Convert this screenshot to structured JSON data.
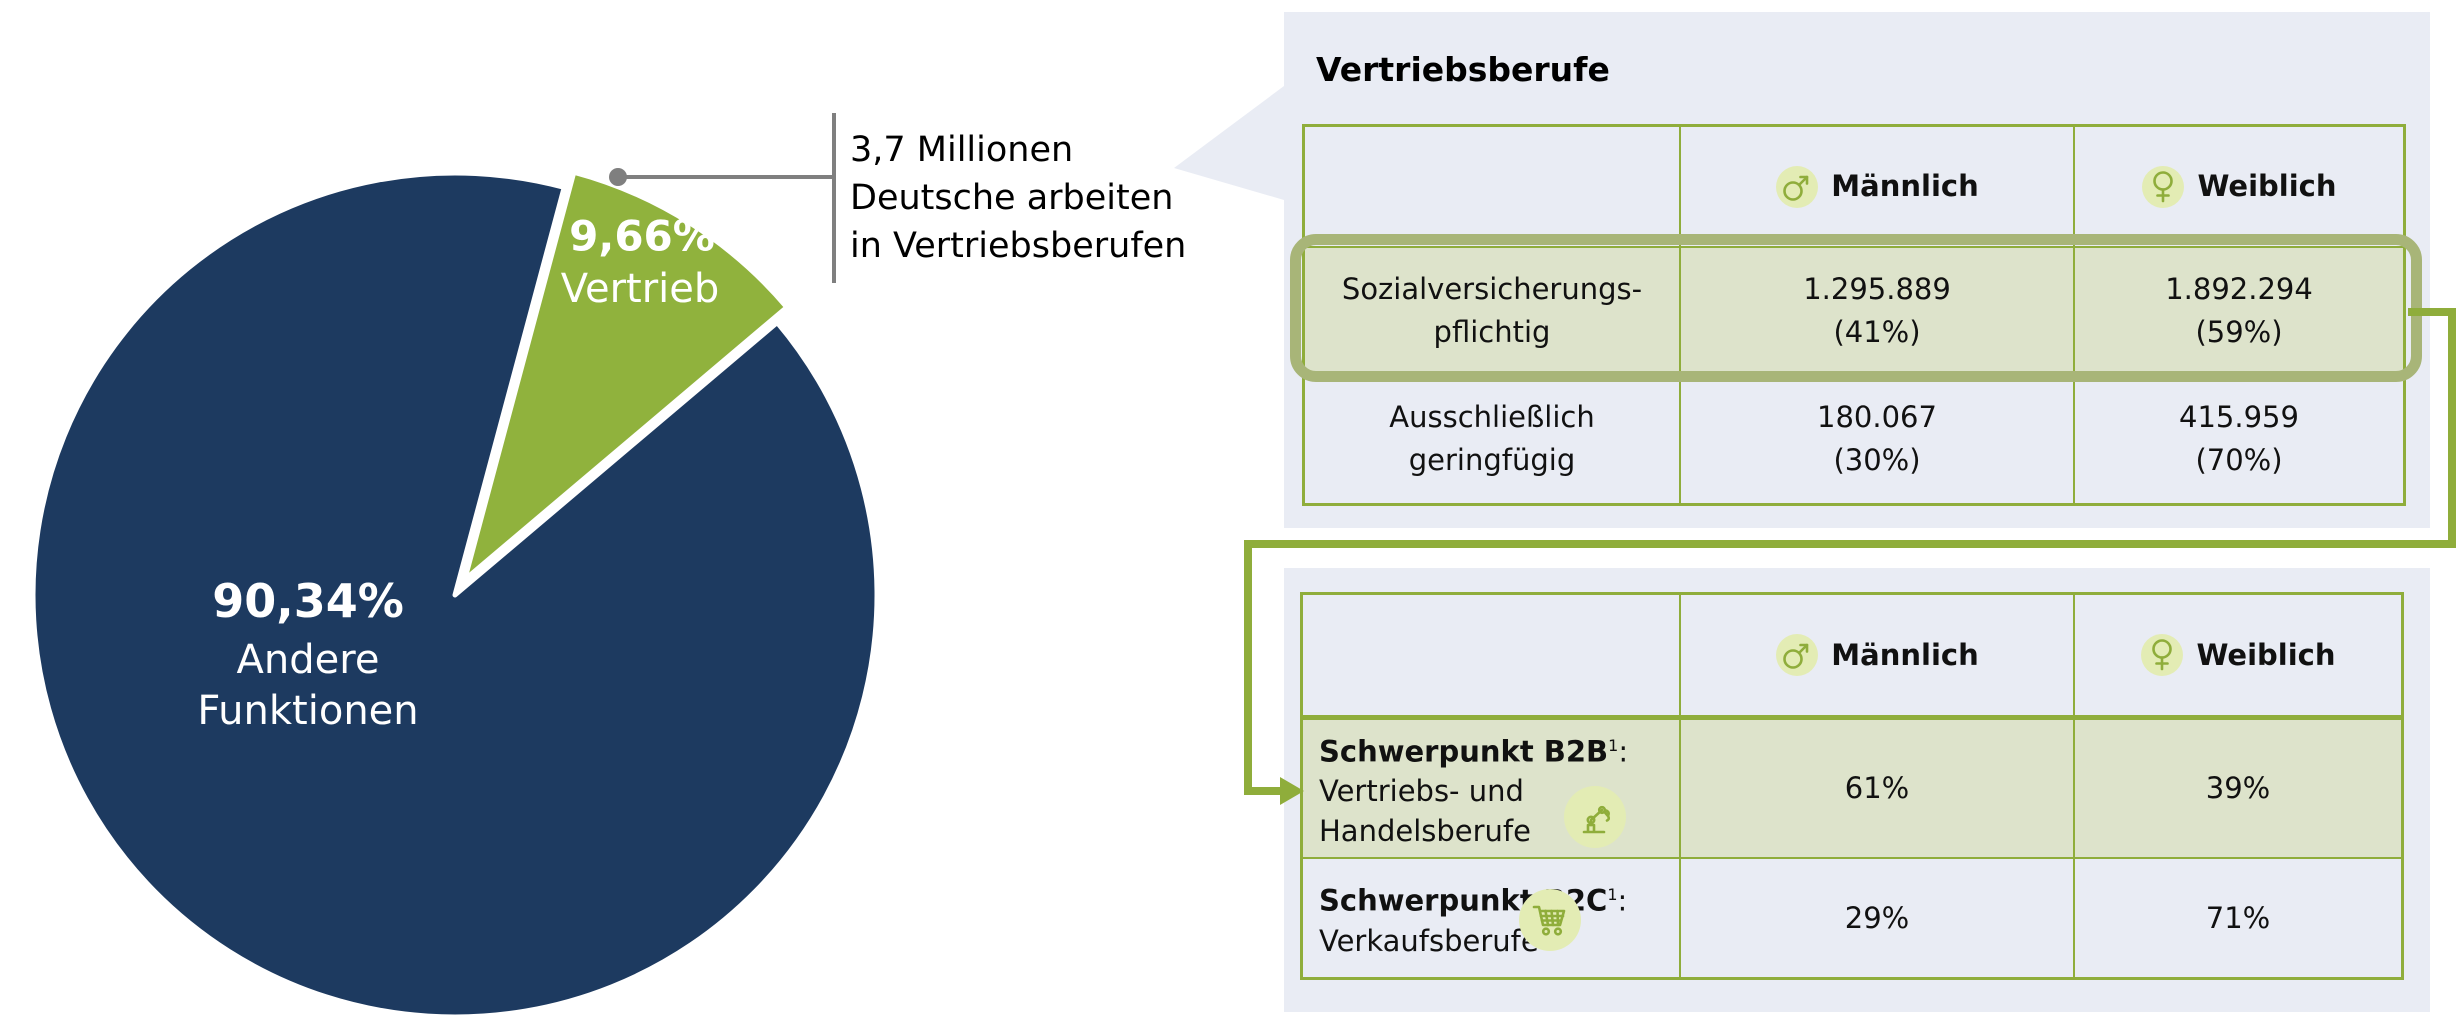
{
  "chart_data": [
    {
      "type": "pie",
      "labels": [
        "Vertrieb",
        "Andere Funktionen"
      ],
      "values": [
        9.66,
        90.34
      ],
      "display_values": [
        "9,66%",
        "90,34%"
      ],
      "colors": [
        "#90b23d",
        "#1d3a60"
      ],
      "annotation": "3,7 Millionen Deutsche arbeiten in Vertriebsberufen",
      "legend": "none",
      "label_position": "inside",
      "exploded_slice": "Vertrieb"
    },
    {
      "type": "table",
      "title": "Vertriebsberufe",
      "columns": [
        "",
        "Männlich",
        "Weiblich"
      ],
      "rows": [
        [
          "Sozialversicherungs-pflichtig",
          "1.295.889 (41%)",
          "1.892.294 (59%)"
        ],
        [
          "Ausschließlich geringfügig",
          "180.067 (30%)",
          "415.959 (70%)"
        ]
      ],
      "highlighted_row": 0
    },
    {
      "type": "table",
      "columns": [
        "",
        "Männlich",
        "Weiblich"
      ],
      "rows": [
        [
          "Schwerpunkt B2B¹: Vertriebs- und Handelsberufe",
          "61%",
          "39%"
        ],
        [
          "Schwerpunkt B2C¹: Verkaufsberufe",
          "29%",
          "71%"
        ]
      ],
      "highlighted_row": 0
    }
  ],
  "pie": {
    "slice_small_pct": "9,66%",
    "slice_small_label": "Vertrieb",
    "slice_large_pct": "90,34%",
    "slice_large_label_1": "Andere",
    "slice_large_label_2": "Funktionen"
  },
  "callout": {
    "line1": "3,7 Millionen",
    "line2": "Deutsche arbeiten",
    "line3": "in Vertriebsberufen"
  },
  "panel1": {
    "title": "Vertriebsberufe",
    "col_male": "Männlich",
    "col_female": "Weiblich",
    "row1": {
      "label1": "Sozialversicherungs-",
      "label2": "pflichtig",
      "male1": "1.295.889",
      "male2": "(41%)",
      "female1": "1.892.294",
      "female2": "(59%)"
    },
    "row2": {
      "label1": "Ausschließlich",
      "label2": "geringfügig",
      "male1": "180.067",
      "male2": "(30%)",
      "female1": "415.959",
      "female2": "(70%)"
    }
  },
  "panel2": {
    "col_male": "Männlich",
    "col_female": "Weiblich",
    "row1": {
      "label_bold": "Schwerpunkt B2B",
      "footnote": "1",
      "colon": ":",
      "label_line2": "Vertriebs- und",
      "label_line3": "Handelsberufe",
      "male": "61%",
      "female": "39%"
    },
    "row2": {
      "label_bold": "Schwerpunkt B2C",
      "footnote": "1",
      "colon": ":",
      "label_line2": "Verkaufsberufe",
      "male": "29%",
      "female": "71%"
    }
  },
  "colors": {
    "navy": "#1d3a60",
    "pie_green": "#90b23d",
    "accent_green": "#8fad3b",
    "highlight_border": "#a8b578",
    "cell_green": "#dde3cb",
    "panel_bg": "#e9ecf4",
    "icon_circle_bg": "#e3ecb4",
    "leader_gray": "#7f7f7f"
  },
  "icons": {
    "male": "male-gender-icon",
    "female": "female-gender-icon",
    "b2b": "robot-arm-icon",
    "b2c": "shopping-cart-icon"
  }
}
